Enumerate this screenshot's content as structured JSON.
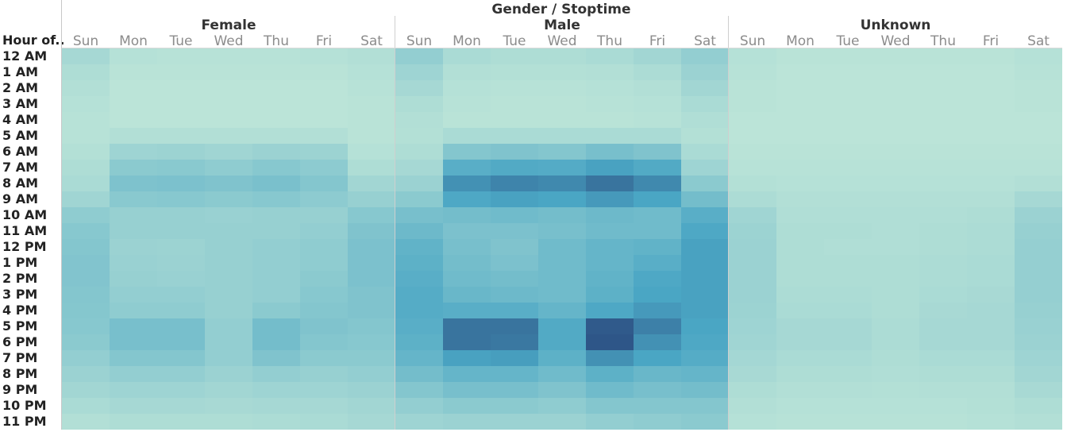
{
  "chart_data": {
    "type": "heatmap",
    "title": "Gender / Stoptime",
    "row_axis_label": "Hour of..",
    "panels": [
      "Female",
      "Male",
      "Unknown"
    ],
    "days": [
      "Sun",
      "Mon",
      "Tue",
      "Wed",
      "Thu",
      "Fri",
      "Sat"
    ],
    "hours": [
      "12 AM",
      "1 AM",
      "2 AM",
      "3 AM",
      "4 AM",
      "5 AM",
      "6 AM",
      "7 AM",
      "8 AM",
      "9 AM",
      "10 AM",
      "11 AM",
      "12 PM",
      "1 PM",
      "2 PM",
      "3 PM",
      "4 PM",
      "5 PM",
      "6 PM",
      "7 PM",
      "8 PM",
      "9 PM",
      "10 PM",
      "11 PM"
    ],
    "value_scale": [
      0,
      1
    ],
    "color_low": "#bde5d8",
    "color_mid": "#4aa6c4",
    "color_high": "#2d5285",
    "values": {
      "Female": [
        [
          0.12,
          0.04,
          0.03,
          0.03,
          0.03,
          0.04,
          0.06
        ],
        [
          0.08,
          0.02,
          0.02,
          0.02,
          0.02,
          0.02,
          0.04
        ],
        [
          0.06,
          0.01,
          0.01,
          0.01,
          0.01,
          0.01,
          0.03
        ],
        [
          0.04,
          0.01,
          0.01,
          0.01,
          0.01,
          0.01,
          0.02
        ],
        [
          0.03,
          0.01,
          0.01,
          0.01,
          0.01,
          0.01,
          0.02
        ],
        [
          0.03,
          0.06,
          0.06,
          0.06,
          0.06,
          0.06,
          0.02
        ],
        [
          0.05,
          0.16,
          0.17,
          0.15,
          0.18,
          0.17,
          0.04
        ],
        [
          0.08,
          0.26,
          0.27,
          0.24,
          0.28,
          0.25,
          0.08
        ],
        [
          0.1,
          0.33,
          0.34,
          0.32,
          0.35,
          0.3,
          0.14
        ],
        [
          0.15,
          0.27,
          0.28,
          0.26,
          0.28,
          0.25,
          0.2
        ],
        [
          0.24,
          0.2,
          0.2,
          0.19,
          0.2,
          0.2,
          0.28
        ],
        [
          0.28,
          0.2,
          0.2,
          0.2,
          0.2,
          0.22,
          0.32
        ],
        [
          0.3,
          0.18,
          0.17,
          0.2,
          0.22,
          0.24,
          0.34
        ],
        [
          0.31,
          0.19,
          0.18,
          0.2,
          0.22,
          0.24,
          0.34
        ],
        [
          0.31,
          0.2,
          0.19,
          0.2,
          0.22,
          0.26,
          0.34
        ],
        [
          0.3,
          0.22,
          0.22,
          0.2,
          0.22,
          0.28,
          0.32
        ],
        [
          0.29,
          0.24,
          0.24,
          0.2,
          0.26,
          0.3,
          0.32
        ],
        [
          0.28,
          0.36,
          0.36,
          0.22,
          0.38,
          0.32,
          0.3
        ],
        [
          0.26,
          0.36,
          0.36,
          0.22,
          0.38,
          0.3,
          0.28
        ],
        [
          0.22,
          0.3,
          0.3,
          0.22,
          0.32,
          0.26,
          0.26
        ],
        [
          0.18,
          0.22,
          0.22,
          0.18,
          0.22,
          0.2,
          0.22
        ],
        [
          0.14,
          0.16,
          0.16,
          0.14,
          0.16,
          0.16,
          0.18
        ],
        [
          0.1,
          0.12,
          0.12,
          0.11,
          0.12,
          0.12,
          0.14
        ],
        [
          0.06,
          0.08,
          0.08,
          0.08,
          0.09,
          0.1,
          0.12
        ]
      ],
      "Male": [
        [
          0.22,
          0.1,
          0.08,
          0.08,
          0.1,
          0.14,
          0.22
        ],
        [
          0.16,
          0.06,
          0.05,
          0.05,
          0.06,
          0.09,
          0.18
        ],
        [
          0.12,
          0.04,
          0.03,
          0.03,
          0.04,
          0.06,
          0.14
        ],
        [
          0.08,
          0.03,
          0.02,
          0.02,
          0.03,
          0.04,
          0.1
        ],
        [
          0.06,
          0.02,
          0.02,
          0.02,
          0.02,
          0.03,
          0.07
        ],
        [
          0.05,
          0.1,
          0.1,
          0.1,
          0.1,
          0.1,
          0.05
        ],
        [
          0.08,
          0.3,
          0.32,
          0.3,
          0.36,
          0.32,
          0.1
        ],
        [
          0.12,
          0.52,
          0.56,
          0.55,
          0.62,
          0.56,
          0.16
        ],
        [
          0.18,
          0.7,
          0.76,
          0.74,
          0.84,
          0.74,
          0.26
        ],
        [
          0.26,
          0.58,
          0.62,
          0.6,
          0.66,
          0.6,
          0.38
        ],
        [
          0.36,
          0.38,
          0.4,
          0.38,
          0.42,
          0.4,
          0.52
        ],
        [
          0.42,
          0.34,
          0.34,
          0.36,
          0.4,
          0.4,
          0.58
        ],
        [
          0.48,
          0.36,
          0.32,
          0.4,
          0.46,
          0.48,
          0.62
        ],
        [
          0.5,
          0.38,
          0.34,
          0.4,
          0.46,
          0.52,
          0.62
        ],
        [
          0.52,
          0.4,
          0.38,
          0.4,
          0.48,
          0.58,
          0.62
        ],
        [
          0.54,
          0.44,
          0.42,
          0.4,
          0.5,
          0.6,
          0.62
        ],
        [
          0.54,
          0.52,
          0.52,
          0.46,
          0.58,
          0.66,
          0.62
        ],
        [
          0.52,
          0.84,
          0.84,
          0.56,
          0.96,
          0.78,
          0.6
        ],
        [
          0.5,
          0.84,
          0.82,
          0.56,
          0.98,
          0.7,
          0.58
        ],
        [
          0.46,
          0.62,
          0.64,
          0.5,
          0.7,
          0.6,
          0.54
        ],
        [
          0.38,
          0.46,
          0.46,
          0.4,
          0.5,
          0.44,
          0.46
        ],
        [
          0.3,
          0.36,
          0.36,
          0.32,
          0.4,
          0.36,
          0.38
        ],
        [
          0.22,
          0.26,
          0.26,
          0.24,
          0.3,
          0.3,
          0.3
        ],
        [
          0.16,
          0.18,
          0.18,
          0.18,
          0.22,
          0.24,
          0.26
        ]
      ],
      "Unknown": [
        [
          0.04,
          0.02,
          0.02,
          0.02,
          0.02,
          0.02,
          0.04
        ],
        [
          0.03,
          0.01,
          0.01,
          0.01,
          0.01,
          0.01,
          0.03
        ],
        [
          0.02,
          0.01,
          0.01,
          0.01,
          0.01,
          0.01,
          0.02
        ],
        [
          0.02,
          0.01,
          0.01,
          0.01,
          0.01,
          0.01,
          0.02
        ],
        [
          0.01,
          0.01,
          0.01,
          0.01,
          0.01,
          0.01,
          0.01
        ],
        [
          0.01,
          0.01,
          0.01,
          0.01,
          0.01,
          0.01,
          0.01
        ],
        [
          0.02,
          0.02,
          0.02,
          0.02,
          0.02,
          0.02,
          0.02
        ],
        [
          0.03,
          0.03,
          0.03,
          0.03,
          0.03,
          0.03,
          0.03
        ],
        [
          0.05,
          0.04,
          0.04,
          0.04,
          0.04,
          0.04,
          0.06
        ],
        [
          0.09,
          0.06,
          0.06,
          0.06,
          0.06,
          0.06,
          0.12
        ],
        [
          0.15,
          0.07,
          0.07,
          0.07,
          0.07,
          0.08,
          0.18
        ],
        [
          0.17,
          0.08,
          0.08,
          0.07,
          0.08,
          0.09,
          0.2
        ],
        [
          0.18,
          0.08,
          0.07,
          0.07,
          0.08,
          0.09,
          0.21
        ],
        [
          0.18,
          0.08,
          0.08,
          0.08,
          0.09,
          0.1,
          0.21
        ],
        [
          0.18,
          0.08,
          0.08,
          0.08,
          0.09,
          0.1,
          0.21
        ],
        [
          0.18,
          0.09,
          0.09,
          0.08,
          0.1,
          0.11,
          0.21
        ],
        [
          0.17,
          0.1,
          0.1,
          0.08,
          0.11,
          0.12,
          0.2
        ],
        [
          0.16,
          0.12,
          0.12,
          0.09,
          0.12,
          0.12,
          0.19
        ],
        [
          0.15,
          0.12,
          0.12,
          0.09,
          0.12,
          0.12,
          0.18
        ],
        [
          0.13,
          0.1,
          0.1,
          0.08,
          0.1,
          0.1,
          0.16
        ],
        [
          0.11,
          0.08,
          0.08,
          0.07,
          0.08,
          0.08,
          0.14
        ],
        [
          0.08,
          0.06,
          0.06,
          0.05,
          0.06,
          0.06,
          0.11
        ],
        [
          0.06,
          0.04,
          0.04,
          0.04,
          0.04,
          0.05,
          0.08
        ],
        [
          0.04,
          0.03,
          0.03,
          0.03,
          0.03,
          0.04,
          0.06
        ]
      ]
    }
  }
}
